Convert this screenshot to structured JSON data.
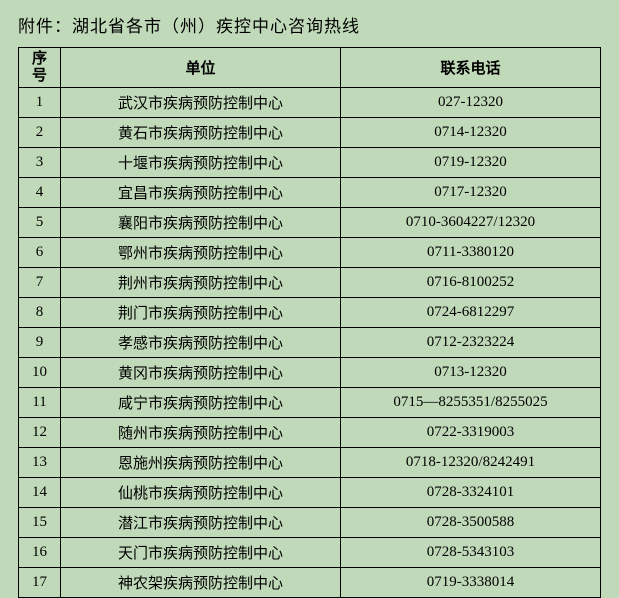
{
  "title": "附件：湖北省各市（州）疾控中心咨询热线",
  "headers": {
    "seq": "序号",
    "unit": "单位",
    "phone": "联系电话"
  },
  "rows": [
    {
      "seq": "1",
      "unit": "武汉市疾病预防控制中心",
      "phone": "027-12320"
    },
    {
      "seq": "2",
      "unit": "黄石市疾病预防控制中心",
      "phone": "0714-12320"
    },
    {
      "seq": "3",
      "unit": "十堰市疾病预防控制中心",
      "phone": "0719-12320"
    },
    {
      "seq": "4",
      "unit": "宜昌市疾病预防控制中心",
      "phone": "0717-12320"
    },
    {
      "seq": "5",
      "unit": "襄阳市疾病预防控制中心",
      "phone": "0710-3604227/12320"
    },
    {
      "seq": "6",
      "unit": "鄂州市疾病预防控制中心",
      "phone": "0711-3380120"
    },
    {
      "seq": "7",
      "unit": "荆州市疾病预防控制中心",
      "phone": "0716-8100252"
    },
    {
      "seq": "8",
      "unit": "荆门市疾病预防控制中心",
      "phone": "0724-6812297"
    },
    {
      "seq": "9",
      "unit": "孝感市疾病预防控制中心",
      "phone": "0712-2323224"
    },
    {
      "seq": "10",
      "unit": "黄冈市疾病预防控制中心",
      "phone": "0713-12320"
    },
    {
      "seq": "11",
      "unit": "咸宁市疾病预防控制中心",
      "phone": "0715—8255351/8255025"
    },
    {
      "seq": "12",
      "unit": "随州市疾病预防控制中心",
      "phone": "0722-3319003"
    },
    {
      "seq": "13",
      "unit": "恩施州疾病预防控制中心",
      "phone": "0718-12320/8242491"
    },
    {
      "seq": "14",
      "unit": "仙桃市疾病预防控制中心",
      "phone": "0728-3324101"
    },
    {
      "seq": "15",
      "unit": "潜江市疾病预防控制中心",
      "phone": "0728-3500588"
    },
    {
      "seq": "16",
      "unit": "天门市疾病预防控制中心",
      "phone": "0728-5343103"
    },
    {
      "seq": "17",
      "unit": "神农架疾病预防控制中心",
      "phone": "0719-3338014"
    }
  ],
  "style": {
    "background_color": "#c0d9b8",
    "border_color": "#000000",
    "text_color": "#000000",
    "title_fontsize": 17,
    "cell_fontsize": 15,
    "col_widths": {
      "seq": 42,
      "unit": 280
    }
  }
}
